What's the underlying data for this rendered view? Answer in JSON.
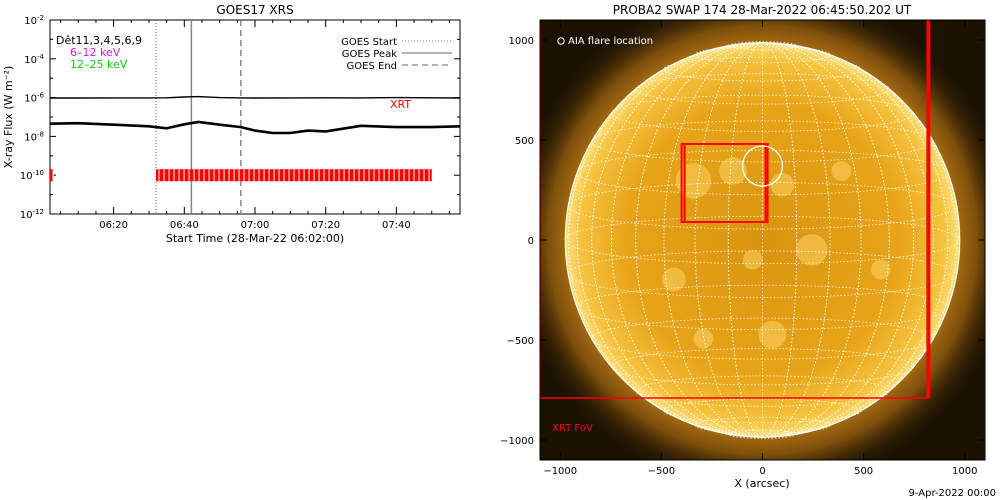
{
  "footer": "9-Apr-2022 00:00",
  "chart_data": [
    {
      "type": "line",
      "title": "GOES17 XRS",
      "xlabel": "Start Time (28-Mar-22 06:02:00)",
      "ylabel": "X-ray Flux (W m⁻²)",
      "xlim": [
        "06:02",
        "07:58"
      ],
      "ylim": [
        1e-12,
        0.01
      ],
      "yscale": "log",
      "xticks": [
        "06:20",
        "06:40",
        "07:00",
        "07:20",
        "07:40"
      ],
      "yticks": [
        {
          "value": 0.01,
          "label": "10",
          "exp": "-2"
        },
        {
          "value": 0.0001,
          "label": "10",
          "exp": "-4"
        },
        {
          "value": 1e-06,
          "label": "10",
          "exp": "-6"
        },
        {
          "value": 1e-08,
          "label": "10",
          "exp": "-8"
        },
        {
          "value": 1e-10,
          "label": "10",
          "exp": "-10"
        },
        {
          "value": 1e-12,
          "label": "10",
          "exp": "-12"
        }
      ],
      "text_labels": {
        "detectors": "Dêt11,3,4,5,6,9",
        "band_low": "6–12 keV",
        "band_high": "12–25 keV",
        "xrt": "XRT"
      },
      "legend": [
        {
          "name": "GOES Start",
          "style": "dotted"
        },
        {
          "name": "GOES Peak",
          "style": "solid"
        },
        {
          "name": "GOES End",
          "style": "dashed"
        }
      ],
      "event_lines": {
        "start": "06:32",
        "peak": "06:42",
        "end": "06:56"
      },
      "series": [
        {
          "name": "long",
          "color": "#000000",
          "x": [
            "06:02",
            "06:10",
            "06:20",
            "06:30",
            "06:35",
            "06:40",
            "06:44",
            "06:50",
            "06:56",
            "07:00",
            "07:10",
            "07:20",
            "07:30",
            "07:40",
            "07:50",
            "07:58"
          ],
          "values": [
            9.5e-07,
            9.5e-07,
            9.7e-07,
            9.6e-07,
            9.8e-07,
            1.08e-06,
            1.12e-06,
            1e-06,
            9.6e-07,
            9.5e-07,
            9.7e-07,
            9.8e-07,
            9.7e-07,
            1e-06,
            9.8e-07,
            9.5e-07
          ]
        },
        {
          "name": "short",
          "color": "#000000",
          "x": [
            "06:02",
            "06:10",
            "06:20",
            "06:30",
            "06:35",
            "06:40",
            "06:44",
            "06:50",
            "06:56",
            "07:00",
            "07:05",
            "07:10",
            "07:15",
            "07:20",
            "07:30",
            "07:40",
            "07:50",
            "07:58"
          ],
          "values": [
            4.5e-08,
            4.8e-08,
            4e-08,
            3.3e-08,
            2.6e-08,
            4.2e-08,
            5.5e-08,
            4e-08,
            3e-08,
            2e-08,
            1.5e-08,
            1.5e-08,
            2e-08,
            1.8e-08,
            3.5e-08,
            3e-08,
            3e-08,
            3.3e-08
          ]
        }
      ],
      "xrt_observations": {
        "color": "#ff0000",
        "level": 1e-10,
        "ranges": [
          [
            "06:02",
            "06:03"
          ],
          [
            "06:32",
            "07:50"
          ]
        ]
      }
    },
    {
      "type": "image",
      "title": "PROBA2 SWAP 174 28-Mar-2022 06:45:50.202 UT",
      "xlabel": "X (arcsec)",
      "ylabel": "",
      "xlim": [
        -1100,
        1100
      ],
      "ylim": [
        -1100,
        1100
      ],
      "xticks": [
        -1000,
        -500,
        0,
        500,
        1000
      ],
      "yticks": [
        1000,
        500,
        0,
        -500,
        -1000
      ],
      "solar_radius_arcsec": 975,
      "grid_spacing_deg": 10,
      "annotations": {
        "flare": "AIA flare location",
        "xrt_fov": "XRT FoV"
      },
      "flare_location": {
        "x": 0,
        "y": 370
      },
      "xrt_fov_box": {
        "x": [
          -1100,
          820
        ],
        "y": [
          -790,
          1110
        ]
      },
      "xrt_pointings": [
        {
          "x": [
            -400,
            25
          ],
          "y": [
            90,
            480
          ]
        },
        {
          "x": [
            -385,
            15
          ],
          "y": [
            90,
            480
          ]
        }
      ]
    }
  ]
}
